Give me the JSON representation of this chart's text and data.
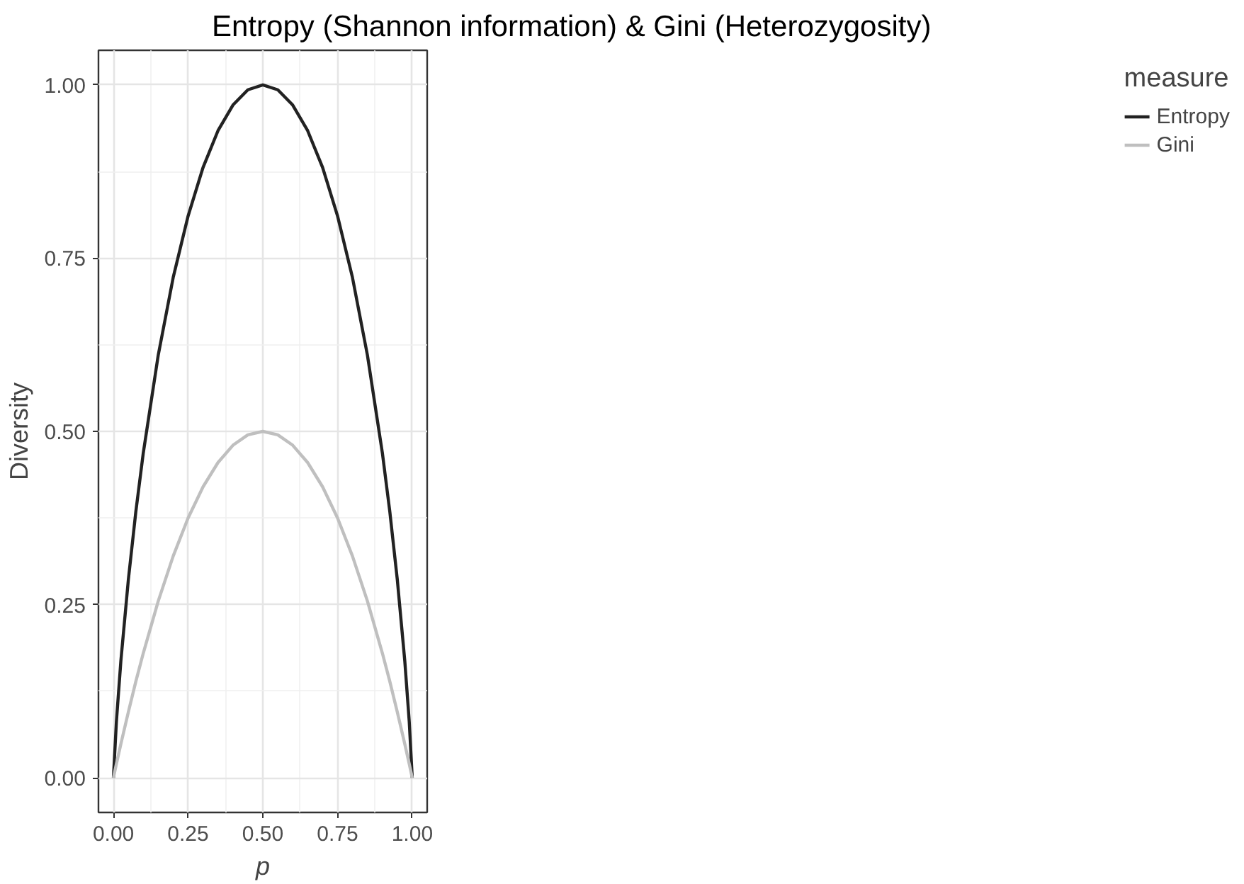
{
  "chart_data": {
    "type": "line",
    "title": "Entropy (Shannon information) & Gini (Heterozygosity)",
    "xlabel": "p",
    "ylabel": "Diversity",
    "legend_title": "measure",
    "x": [
      0,
      0.01,
      0.025,
      0.05,
      0.075,
      0.1,
      0.15,
      0.2,
      0.25,
      0.3,
      0.35,
      0.4,
      0.45,
      0.5,
      0.55,
      0.6,
      0.65,
      0.7,
      0.75,
      0.8,
      0.85,
      0.9,
      0.925,
      0.95,
      0.975,
      0.99,
      1
    ],
    "series": [
      {
        "name": "Entropy",
        "color": "#222222",
        "values": [
          0,
          0.081,
          0.169,
          0.286,
          0.384,
          0.469,
          0.61,
          0.722,
          0.811,
          0.881,
          0.934,
          0.971,
          0.993,
          1,
          0.993,
          0.971,
          0.934,
          0.881,
          0.811,
          0.722,
          0.61,
          0.469,
          0.384,
          0.286,
          0.169,
          0.081,
          0
        ]
      },
      {
        "name": "Gini",
        "color": "#bfbfbf",
        "values": [
          0,
          0.02,
          0.049,
          0.095,
          0.139,
          0.18,
          0.255,
          0.32,
          0.375,
          0.42,
          0.455,
          0.48,
          0.495,
          0.5,
          0.495,
          0.48,
          0.455,
          0.42,
          0.375,
          0.32,
          0.255,
          0.18,
          0.139,
          0.095,
          0.049,
          0.02,
          0
        ]
      }
    ],
    "xlim": [
      -0.05,
      1.05
    ],
    "ylim": [
      -0.05,
      1.05
    ],
    "xticks": [
      {
        "value": 0,
        "label": "0.00"
      },
      {
        "value": 0.25,
        "label": "0.25"
      },
      {
        "value": 0.5,
        "label": "0.50"
      },
      {
        "value": 0.75,
        "label": "0.75"
      },
      {
        "value": 1,
        "label": "1.00"
      }
    ],
    "yticks": [
      {
        "value": 0,
        "label": "0.00"
      },
      {
        "value": 0.25,
        "label": "0.25"
      },
      {
        "value": 0.5,
        "label": "0.50"
      },
      {
        "value": 0.75,
        "label": "0.75"
      },
      {
        "value": 1,
        "label": "1.00"
      }
    ],
    "grid": true,
    "legend": "right",
    "line_style": "solid",
    "marker": "none"
  }
}
